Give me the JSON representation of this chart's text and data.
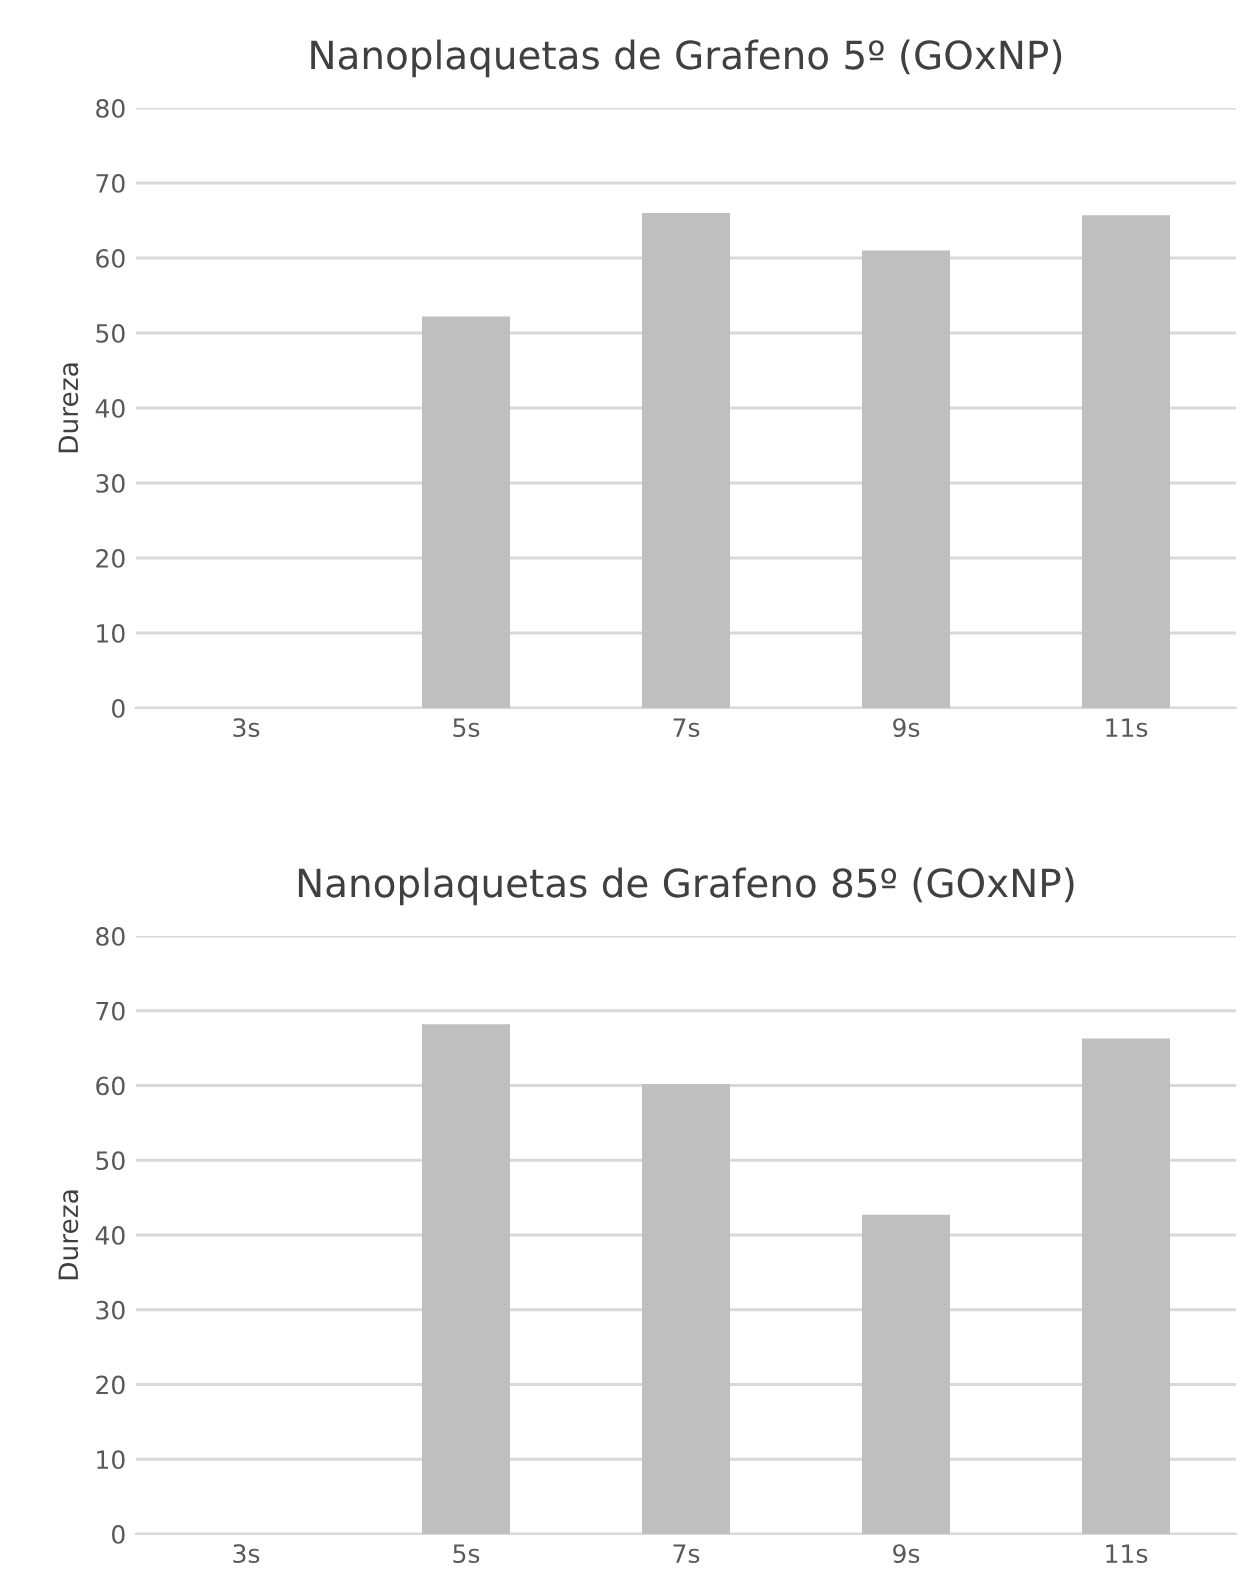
{
  "chart_data": [
    {
      "type": "bar",
      "title": "Nanoplaquetas de Grafeno 5º (GOxNP)",
      "ylabel": "Dureza",
      "categories": [
        "3s",
        "5s",
        "7s",
        "9s",
        "11s"
      ],
      "values": [
        null,
        52.2,
        66.0,
        61.0,
        65.7
      ],
      "color": "#bfbfbf",
      "ylim": [
        0,
        80
      ],
      "yticks": [
        0,
        10,
        20,
        30,
        40,
        50,
        60,
        70,
        80
      ],
      "grid": "y",
      "legend": false
    },
    {
      "type": "bar",
      "title": "Nanoplaquetas de Grafeno 85º (GOxNP)",
      "ylabel": "Dureza",
      "categories": [
        "3s",
        "5s",
        "7s",
        "9s",
        "11s"
      ],
      "values": [
        null,
        68.2,
        60.2,
        42.7,
        66.3
      ],
      "color": "#bfbfbf",
      "ylim": [
        0,
        80
      ],
      "yticks": [
        0,
        10,
        20,
        30,
        40,
        50,
        60,
        70,
        80
      ],
      "grid": "y",
      "legend": false
    }
  ]
}
